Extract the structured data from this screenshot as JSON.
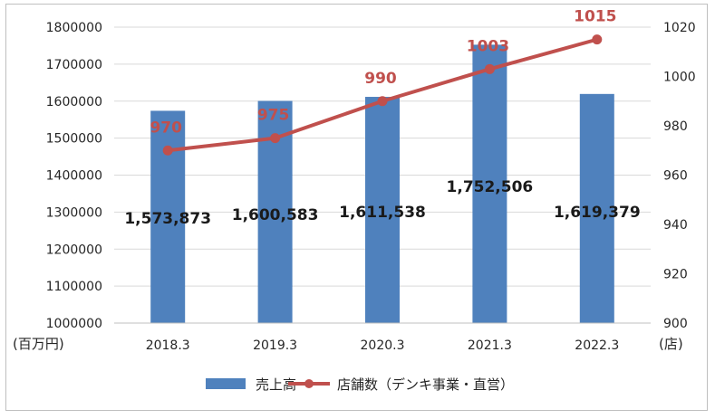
{
  "chart_data": {
    "type": "bar",
    "categories": [
      "2018.3",
      "2019.3",
      "2020.3",
      "2021.3",
      "2022.3"
    ],
    "series": [
      {
        "name": "売上高",
        "kind": "bar",
        "axis": "left",
        "values": [
          1573873,
          1600583,
          1611538,
          1752506,
          1619379
        ],
        "labels": [
          "1,573,873",
          "1,600,583",
          "1,611,538",
          "1,752,506",
          "1,619,379"
        ]
      },
      {
        "name": "店舗数（デンキ事業・直営）",
        "kind": "line",
        "axis": "right",
        "values": [
          970,
          975,
          990,
          1003,
          1015
        ],
        "labels": [
          "970",
          "975",
          "990",
          "1003",
          "1015"
        ]
      }
    ],
    "y_left": {
      "unit": "(百万円)",
      "ylim": [
        1000000,
        1800000
      ],
      "ticks": [
        "1000000",
        "1100000",
        "1200000",
        "1300000",
        "1400000",
        "1500000",
        "1600000",
        "1700000",
        "1800000"
      ]
    },
    "y_right": {
      "unit": "(店)",
      "ylim": [
        900,
        1020
      ],
      "ticks": [
        "900",
        "920",
        "940",
        "960",
        "980",
        "1000",
        "1020"
      ]
    },
    "grid": true,
    "legend": "bottom",
    "colors": {
      "bar": "#4f81bd",
      "line": "#c0504d",
      "grid": "#d9d9d9"
    }
  }
}
